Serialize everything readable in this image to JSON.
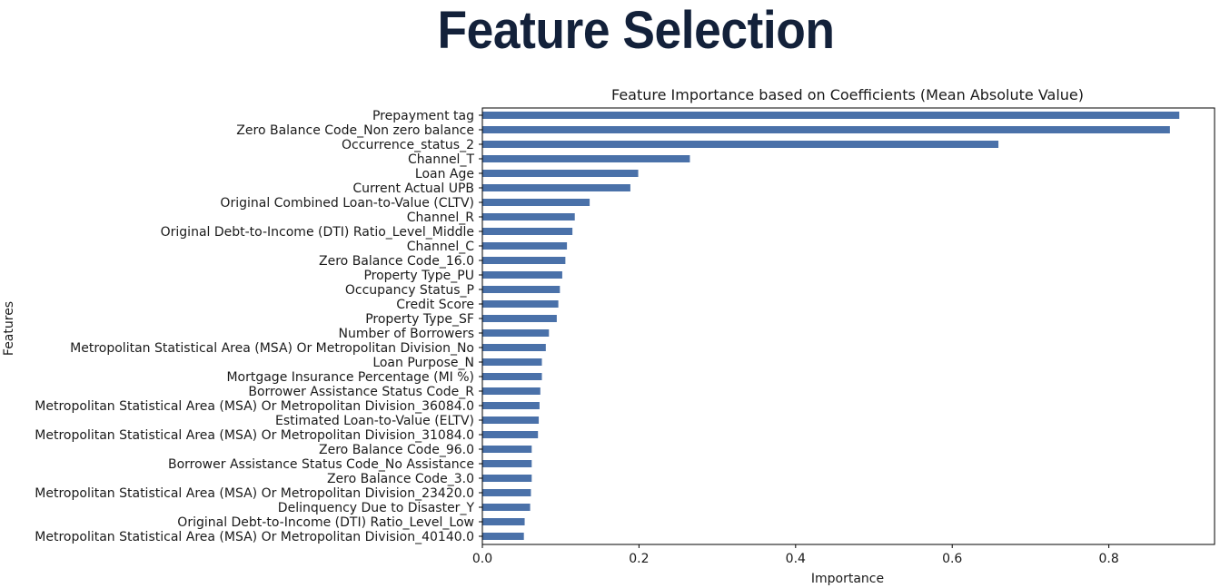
{
  "slide": {
    "title": "Feature Selection"
  },
  "chart_data": {
    "type": "bar",
    "orientation": "horizontal",
    "title": "Feature Importance based on Coefficients (Mean Absolute Value)",
    "xlabel": "Importance",
    "ylabel": "Features",
    "xlim": [
      0.0,
      0.935
    ],
    "xticks": [
      0.0,
      0.2,
      0.4,
      0.6,
      0.8
    ],
    "xtick_labels": [
      "0.0",
      "0.2",
      "0.4",
      "0.6",
      "0.8"
    ],
    "grid": false,
    "bar_color": "#4a71a9",
    "categories": [
      "Prepayment tag",
      "Zero Balance Code_Non zero balance",
      "Occurrence_status_2",
      "Channel_T",
      "Loan Age",
      "Current Actual UPB",
      "Original Combined Loan-to-Value (CLTV)",
      "Channel_R",
      "Original Debt-to-Income (DTI) Ratio_Level_Middle",
      "Channel_C",
      "Zero Balance Code_16.0",
      "Property Type_PU",
      "Occupancy Status_P",
      "Credit Score",
      "Property Type_SF",
      "Number of Borrowers",
      "Metropolitan Statistical Area (MSA) Or Metropolitan Division_No",
      "Loan Purpose_N",
      "Mortgage Insurance Percentage (MI %)",
      "Borrower Assistance Status Code_R",
      "Metropolitan Statistical Area (MSA) Or Metropolitan Division_36084.0",
      "Estimated Loan-to-Value (ELTV)",
      "Metropolitan Statistical Area (MSA) Or Metropolitan Division_31084.0",
      "Zero Balance Code_96.0",
      "Borrower Assistance Status Code_No Assistance",
      "Zero Balance Code_3.0",
      "Metropolitan Statistical Area (MSA) Or Metropolitan Division_23420.0",
      "Delinquency Due to Disaster_Y",
      "Original Debt-to-Income (DTI) Ratio_Level_Low",
      "Metropolitan Statistical Area (MSA) Or Metropolitan Division_40140.0"
    ],
    "values": [
      0.89,
      0.878,
      0.659,
      0.265,
      0.199,
      0.189,
      0.137,
      0.118,
      0.115,
      0.108,
      0.106,
      0.102,
      0.099,
      0.097,
      0.095,
      0.085,
      0.081,
      0.076,
      0.076,
      0.074,
      0.073,
      0.072,
      0.071,
      0.063,
      0.063,
      0.063,
      0.062,
      0.061,
      0.054,
      0.053
    ]
  }
}
